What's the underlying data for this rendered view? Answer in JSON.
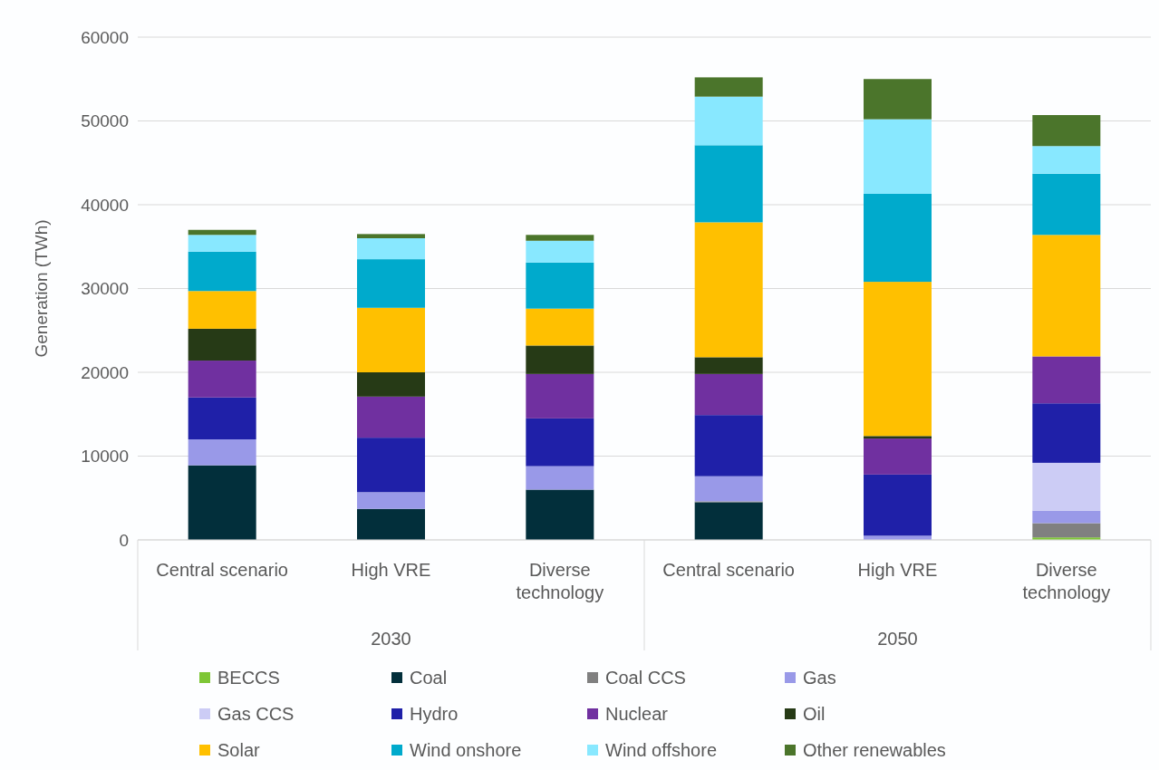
{
  "chart_data": {
    "type": "bar",
    "stacked": true,
    "ylabel": "Generation (TWh)",
    "categories": [
      "Central scenario",
      "High VRE",
      "Diverse technology",
      "Central scenario",
      "High VRE",
      "Diverse technology"
    ],
    "annotations": [
      "2030",
      "2050"
    ],
    "ylim": [
      0,
      60000
    ],
    "yticks": [
      0,
      10000,
      20000,
      30000,
      40000,
      50000,
      60000
    ],
    "grid": "y",
    "legend": "bottom",
    "series": [
      {
        "name": "BECCS",
        "color": "#7ec636",
        "values": [
          0,
          0,
          0,
          0,
          0,
          300
        ]
      },
      {
        "name": "Coal",
        "color": "#022f3b",
        "values": [
          8900,
          3700,
          6000,
          4500,
          0,
          0
        ]
      },
      {
        "name": "Coal CCS",
        "color": "#808080",
        "values": [
          0,
          0,
          0,
          100,
          0,
          1700
        ]
      },
      {
        "name": "Gas",
        "color": "#9999e8",
        "values": [
          3100,
          2000,
          2800,
          3000,
          500,
          1500
        ]
      },
      {
        "name": "Gas CCS",
        "color": "#ccccf5",
        "values": [
          0,
          0,
          0,
          0,
          0,
          5700
        ]
      },
      {
        "name": "Hydro",
        "color": "#1f20a8",
        "values": [
          5000,
          6500,
          5700,
          7300,
          7300,
          7100
        ]
      },
      {
        "name": "Nuclear",
        "color": "#7030a0",
        "values": [
          4400,
          4900,
          5300,
          4900,
          4300,
          5600
        ]
      },
      {
        "name": "Oil",
        "color": "#263a16",
        "values": [
          3800,
          2900,
          3400,
          2000,
          300,
          0
        ]
      },
      {
        "name": "Solar",
        "color": "#ffc000",
        "values": [
          4500,
          7700,
          4400,
          16100,
          18400,
          14500
        ]
      },
      {
        "name": "Wind onshore",
        "color": "#00aacc",
        "values": [
          4700,
          5800,
          5500,
          9200,
          10500,
          7300
        ]
      },
      {
        "name": "Wind offshore",
        "color": "#88e8ff",
        "values": [
          2000,
          2500,
          2600,
          5800,
          8900,
          3300
        ]
      },
      {
        "name": "Other renewables",
        "color": "#4b752b",
        "values": [
          600,
          500,
          700,
          2300,
          4800,
          3700
        ]
      }
    ]
  }
}
